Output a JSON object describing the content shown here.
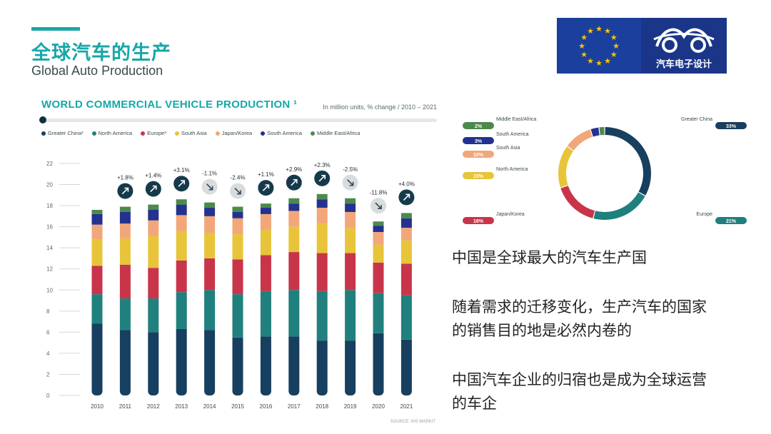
{
  "header": {
    "title_cn": "全球汽车的生产",
    "title_en": "Global Auto Production",
    "accent_color": "#1aa6a6"
  },
  "logo": {
    "brand_name": "汽车电子设计",
    "eu_flag_color": "#1b3f9c",
    "star_color": "#f7c500"
  },
  "bar_chart": {
    "title": "WORLD COMMERCIAL VEHICLE PRODUCTION ¹",
    "unit_note": "In million units, % change / 2010 – 2021",
    "source": "SOURCE: IHS MARKIT",
    "legend": [
      {
        "label": "Greater China²",
        "color": "#173f5f"
      },
      {
        "label": "North America",
        "color": "#20807d"
      },
      {
        "label": "Europe³",
        "color": "#c8354a"
      },
      {
        "label": "South Asia",
        "color": "#e8c43a"
      },
      {
        "label": "Japan/Korea",
        "color": "#f2a77a"
      },
      {
        "label": "South America",
        "color": "#25318f"
      },
      {
        "label": "Middle East/Africa",
        "color": "#4b8a4b"
      }
    ]
  },
  "donut": {
    "labels": [
      {
        "name": "Middle East/Africa",
        "value": "2%"
      },
      {
        "name": "South America",
        "value": "3%"
      },
      {
        "name": "South Asia",
        "value": "10%"
      },
      {
        "name": "North America",
        "value": "15%"
      },
      {
        "name": "Japan/Korea",
        "value": "16%"
      },
      {
        "name": "Greater China",
        "value": "33%"
      },
      {
        "name": "Europe",
        "value": "21%"
      }
    ]
  },
  "text": {
    "p1": "中国是全球最大的汽车生产国",
    "p2_line1": "随着需求的迁移变化，生产汽车的国家",
    "p2_line2": "的销售目的地是必然内卷的",
    "p3_line1": "中国汽车企业的归宿也是成为全球运营",
    "p3_line2": "的车企"
  },
  "chart_data": [
    {
      "type": "bar",
      "stacked": true,
      "title": "WORLD COMMERCIAL VEHICLE PRODUCTION ¹",
      "ylim": [
        0,
        22
      ],
      "yticks": [
        0,
        2,
        4,
        6,
        8,
        10,
        12,
        14,
        16,
        18,
        20,
        22
      ],
      "grid": false,
      "legend_position": "top-left",
      "categories": [
        "2010",
        "2011",
        "2012",
        "2013",
        "2014",
        "2015",
        "2016",
        "2017",
        "2018",
        "2019",
        "2020",
        "2021"
      ],
      "series": [
        {
          "name": "Greater China²",
          "color": "#173f5f",
          "values": [
            6.8,
            6.2,
            6.0,
            6.3,
            6.2,
            5.5,
            5.6,
            5.6,
            5.2,
            5.2,
            5.9,
            5.3
          ]
        },
        {
          "name": "North America",
          "color": "#20807d",
          "values": [
            2.8,
            3.0,
            3.2,
            3.5,
            3.8,
            4.1,
            4.3,
            4.4,
            4.7,
            4.8,
            3.8,
            4.2
          ]
        },
        {
          "name": "Europe³",
          "color": "#c8354a",
          "values": [
            2.7,
            3.2,
            2.9,
            3.0,
            3.0,
            3.3,
            3.4,
            3.6,
            3.6,
            3.5,
            2.9,
            3.0
          ]
        },
        {
          "name": "South Asia",
          "color": "#e8c43a",
          "values": [
            2.5,
            2.5,
            3.0,
            2.8,
            2.4,
            2.4,
            2.4,
            2.4,
            2.8,
            2.4,
            1.7,
            2.2
          ]
        },
        {
          "name": "Japan/Korea",
          "color": "#f2a77a",
          "values": [
            1.4,
            1.4,
            1.5,
            1.5,
            1.6,
            1.5,
            1.5,
            1.5,
            1.5,
            1.5,
            1.2,
            1.2
          ]
        },
        {
          "name": "South America",
          "color": "#25318f",
          "values": [
            1.0,
            1.1,
            1.0,
            1.0,
            0.8,
            0.6,
            0.6,
            0.7,
            0.8,
            0.8,
            0.6,
            0.9
          ]
        },
        {
          "name": "Middle East/Africa",
          "color": "#4b8a4b",
          "values": [
            0.4,
            0.5,
            0.5,
            0.5,
            0.5,
            0.5,
            0.4,
            0.5,
            0.5,
            0.5,
            0.4,
            0.5
          ]
        }
      ],
      "annotations": [
        null,
        "+1.8%",
        "+1.4%",
        "+3.1%",
        "-1.1%",
        "-2.4%",
        "+1.1%",
        "+2.9%",
        "+2.3%",
        "-2.5%",
        "-11.8%",
        "+4.0%"
      ],
      "arrow_colors": {
        "up": "#163a4c",
        "down": "#d9dcdd"
      }
    },
    {
      "type": "pie",
      "donut": true,
      "categories": [
        "Greater China",
        "Europe",
        "Japan/Korea",
        "North America",
        "South Asia",
        "South America",
        "Middle East/Africa"
      ],
      "values": [
        33,
        21,
        16,
        15,
        10,
        3,
        2
      ],
      "colors": [
        "#173f5f",
        "#20807d",
        "#c8354a",
        "#e8c43a",
        "#f2a77a",
        "#25318f",
        "#4b8a4b"
      ]
    }
  ]
}
